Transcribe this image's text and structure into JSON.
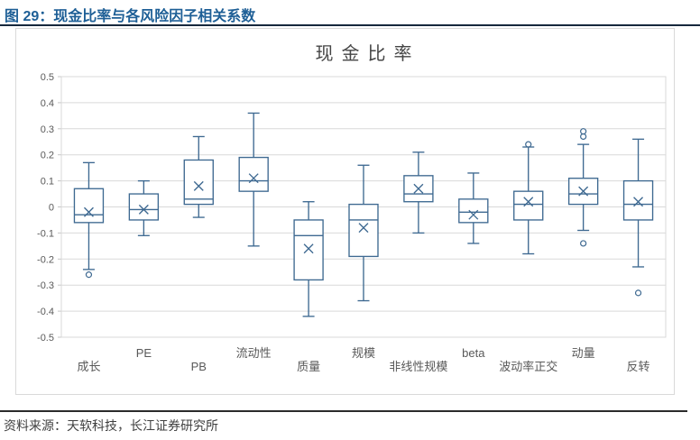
{
  "header": {
    "title": "图 29：现金比率与各风险因子相关系数"
  },
  "footer": {
    "text": "资料来源：天软科技，长江证券研究所"
  },
  "colors": {
    "accent_blue": "#3e6991",
    "header_text": "#1e5f96",
    "header_rule": "#16283c",
    "grid_line": "#d9d9d9",
    "tick_mark": "#c4c4c4",
    "axis_text": "#595959",
    "chart_title_text": "#454545",
    "footer_text": "#404040",
    "footer_rule": "#2b2b2b",
    "panel_border": "#d9d9d9"
  },
  "chart_data": {
    "type": "boxplot",
    "title": "现金比率",
    "xlabel": "",
    "ylabel": "",
    "ylim": [
      -0.5,
      0.5
    ],
    "ytick_step": 0.1,
    "ytick_labels": [
      "0.5",
      "0.4",
      "0.3",
      "0.2",
      "0.1",
      "0",
      "-0.1",
      "-0.2",
      "-0.3",
      "-0.4",
      "-0.5"
    ],
    "grid": true,
    "staggered_category_labels": true,
    "legend": "none",
    "categories": [
      "成长",
      "PE",
      "PB",
      "流动性",
      "质量",
      "规模",
      "非线性规模",
      "beta",
      "波动率正交",
      "动量",
      "反转"
    ],
    "boxes": [
      {
        "category": "成长",
        "whisker_low": -0.24,
        "q1": -0.06,
        "median": -0.03,
        "mean": -0.02,
        "q3": 0.07,
        "whisker_high": 0.17,
        "outliers": [
          -0.26
        ]
      },
      {
        "category": "PE",
        "whisker_low": -0.11,
        "q1": -0.05,
        "median": -0.01,
        "mean": -0.01,
        "q3": 0.05,
        "whisker_high": 0.1,
        "outliers": []
      },
      {
        "category": "PB",
        "whisker_low": -0.04,
        "q1": 0.01,
        "median": 0.03,
        "mean": 0.08,
        "q3": 0.18,
        "whisker_high": 0.27,
        "outliers": []
      },
      {
        "category": "流动性",
        "whisker_low": -0.15,
        "q1": 0.06,
        "median": 0.1,
        "mean": 0.11,
        "q3": 0.19,
        "whisker_high": 0.36,
        "outliers": []
      },
      {
        "category": "质量",
        "whisker_low": -0.42,
        "q1": -0.28,
        "median": -0.11,
        "mean": -0.16,
        "q3": -0.05,
        "whisker_high": 0.02,
        "outliers": []
      },
      {
        "category": "规模",
        "whisker_low": -0.36,
        "q1": -0.19,
        "median": -0.05,
        "mean": -0.08,
        "q3": 0.01,
        "whisker_high": 0.16,
        "outliers": []
      },
      {
        "category": "非线性规模",
        "whisker_low": -0.1,
        "q1": 0.02,
        "median": 0.05,
        "mean": 0.07,
        "q3": 0.12,
        "whisker_high": 0.21,
        "outliers": []
      },
      {
        "category": "beta",
        "whisker_low": -0.14,
        "q1": -0.06,
        "median": -0.02,
        "mean": -0.03,
        "q3": 0.03,
        "whisker_high": 0.13,
        "outliers": []
      },
      {
        "category": "波动率正交",
        "whisker_low": -0.18,
        "q1": -0.05,
        "median": 0.01,
        "mean": 0.02,
        "q3": 0.06,
        "whisker_high": 0.23,
        "outliers": [
          0.24
        ]
      },
      {
        "category": "动量",
        "whisker_low": -0.09,
        "q1": 0.01,
        "median": 0.05,
        "mean": 0.06,
        "q3": 0.11,
        "whisker_high": 0.24,
        "outliers": [
          0.29,
          0.27,
          -0.14
        ]
      },
      {
        "category": "反转",
        "whisker_low": -0.23,
        "q1": -0.05,
        "median": 0.01,
        "mean": 0.02,
        "q3": 0.1,
        "whisker_high": 0.26,
        "outliers": [
          -0.33
        ]
      }
    ]
  }
}
